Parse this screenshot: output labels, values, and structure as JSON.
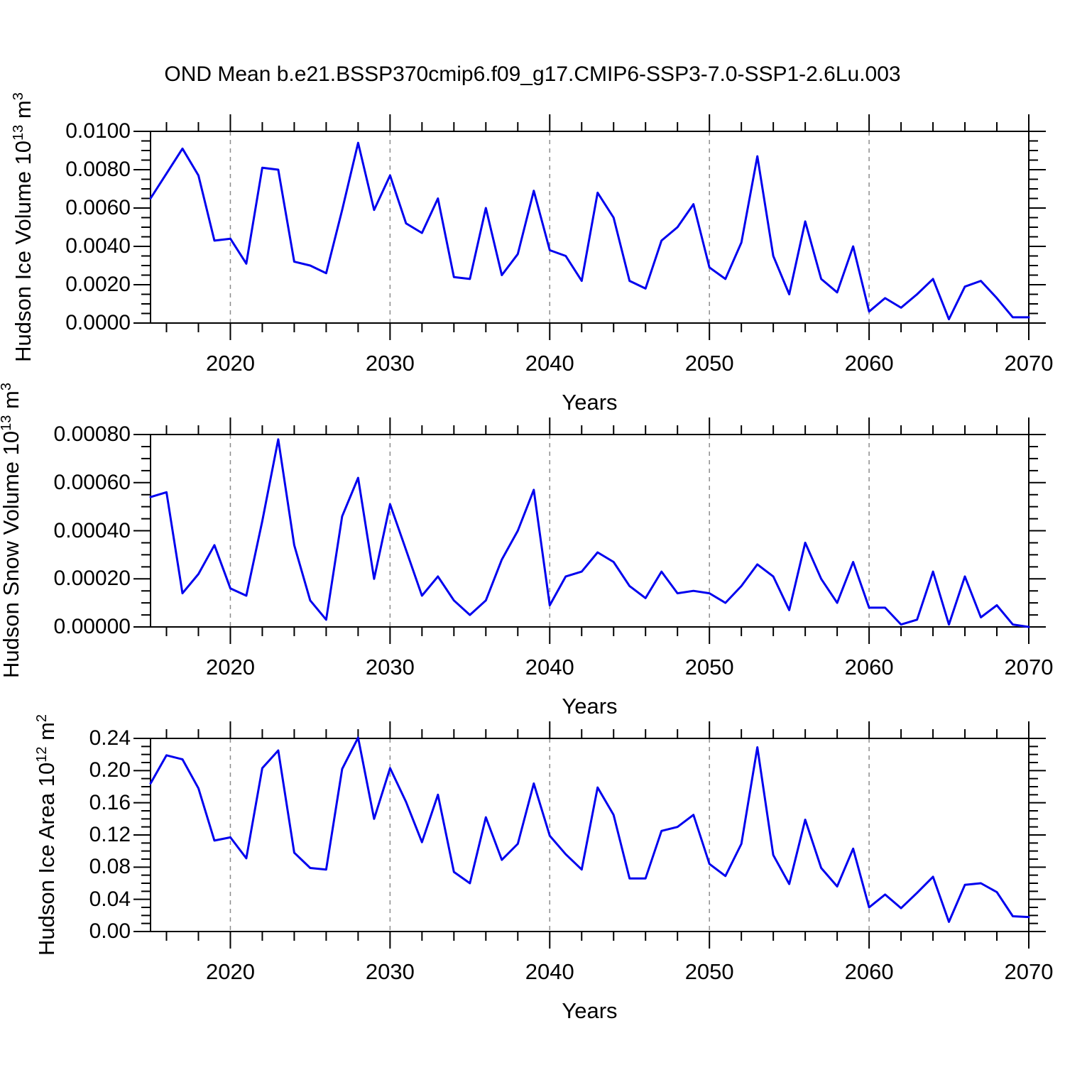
{
  "title": "OND Mean b.e21.BSSP370cmip6.f09_g17.CMIP6-SSP3-7.0-SSP1-2.6Lu.003",
  "colors": {
    "line": "#0000ee",
    "axis": "#000000",
    "grid": "#8c8c8c",
    "background": "#ffffff"
  },
  "chart_data": [
    {
      "type": "line",
      "name": "ice-volume",
      "ylabel_text": "Hudson Ice Volume 10¹³ m³",
      "ylabel": {
        "pre": "Hudson Ice Volume 10",
        "exp": "13",
        "unit": " m",
        "unit_exp": "3"
      },
      "xlabel": "Years",
      "xlim": [
        2015,
        2070
      ],
      "ylim": [
        0,
        0.01
      ],
      "xticks": [
        2020,
        2030,
        2040,
        2050,
        2060,
        2070
      ],
      "xtick_labels": [
        "2020",
        "2030",
        "2040",
        "2050",
        "2060",
        "2070"
      ],
      "xminor_step": 2,
      "grid_years": [
        2020,
        2030,
        2040,
        2050,
        2060
      ],
      "ytick_step": 0.002,
      "yminor_step": 0.0005,
      "ytick_labels": [
        "0.0000",
        "0.0020",
        "0.0040",
        "0.0060",
        "0.0080",
        "0.0100"
      ],
      "x": [
        2015,
        2016,
        2017,
        2018,
        2019,
        2020,
        2021,
        2022,
        2023,
        2024,
        2025,
        2026,
        2027,
        2028,
        2029,
        2030,
        2031,
        2032,
        2033,
        2034,
        2035,
        2036,
        2037,
        2038,
        2039,
        2040,
        2041,
        2042,
        2043,
        2044,
        2045,
        2046,
        2047,
        2048,
        2049,
        2050,
        2051,
        2052,
        2053,
        2054,
        2055,
        2056,
        2057,
        2058,
        2059,
        2060,
        2061,
        2062,
        2063,
        2064,
        2065,
        2066,
        2067,
        2068,
        2069,
        2070
      ],
      "values": [
        0.0065,
        0.0078,
        0.0091,
        0.0077,
        0.0043,
        0.0044,
        0.0031,
        0.0081,
        0.008,
        0.0032,
        0.003,
        0.0026,
        0.0059,
        0.0094,
        0.0059,
        0.0077,
        0.0052,
        0.0047,
        0.0065,
        0.0024,
        0.0023,
        0.006,
        0.0025,
        0.0036,
        0.0069,
        0.0038,
        0.0035,
        0.0022,
        0.0068,
        0.0055,
        0.0022,
        0.0018,
        0.0043,
        0.005,
        0.0062,
        0.0029,
        0.0023,
        0.0042,
        0.0087,
        0.0035,
        0.0015,
        0.0053,
        0.0023,
        0.0016,
        0.004,
        0.0006,
        0.0013,
        0.0008,
        0.0015,
        0.0023,
        0.0002,
        0.0019,
        0.0022,
        0.0013,
        0.0003,
        0.0003
      ]
    },
    {
      "type": "line",
      "name": "snow-volume",
      "ylabel_text": "Hudson Snow Volume 10¹³ m³",
      "ylabel": {
        "pre": "Hudson Snow Volume 10",
        "exp": "13",
        "unit": " m",
        "unit_exp": "3"
      },
      "xlabel": "Years",
      "xlim": [
        2015,
        2070
      ],
      "ylim": [
        0,
        0.0008
      ],
      "xticks": [
        2020,
        2030,
        2040,
        2050,
        2060,
        2070
      ],
      "xtick_labels": [
        "2020",
        "2030",
        "2040",
        "2050",
        "2060",
        "2070"
      ],
      "xminor_step": 2,
      "grid_years": [
        2020,
        2030,
        2040,
        2050,
        2060
      ],
      "ytick_step": 0.0002,
      "yminor_step": 5e-05,
      "ytick_labels": [
        "0.00000",
        "0.00020",
        "0.00040",
        "0.00060",
        "0.00080"
      ],
      "x": [
        2015,
        2016,
        2017,
        2018,
        2019,
        2020,
        2021,
        2022,
        2023,
        2024,
        2025,
        2026,
        2027,
        2028,
        2029,
        2030,
        2031,
        2032,
        2033,
        2034,
        2035,
        2036,
        2037,
        2038,
        2039,
        2040,
        2041,
        2042,
        2043,
        2044,
        2045,
        2046,
        2047,
        2048,
        2049,
        2050,
        2051,
        2052,
        2053,
        2054,
        2055,
        2056,
        2057,
        2058,
        2059,
        2060,
        2061,
        2062,
        2063,
        2064,
        2065,
        2066,
        2067,
        2068,
        2069,
        2070
      ],
      "values": [
        0.00054,
        0.00056,
        0.00014,
        0.00022,
        0.00034,
        0.00016,
        0.00013,
        0.00044,
        0.00078,
        0.00034,
        0.00011,
        3e-05,
        0.00046,
        0.00062,
        0.0002,
        0.00051,
        0.00032,
        0.00013,
        0.00021,
        0.00011,
        5e-05,
        0.00011,
        0.00028,
        0.0004,
        0.00057,
        9e-05,
        0.00021,
        0.00023,
        0.00031,
        0.00027,
        0.00017,
        0.00012,
        0.00023,
        0.00014,
        0.00015,
        0.00014,
        0.0001,
        0.00017,
        0.00026,
        0.00021,
        7e-05,
        0.00035,
        0.0002,
        0.0001,
        0.00027,
        8e-05,
        8e-05,
        1e-05,
        3e-05,
        0.00023,
        1e-05,
        0.00021,
        4e-05,
        9e-05,
        1e-05,
        0.0
      ]
    },
    {
      "type": "line",
      "name": "ice-area",
      "ylabel_text": "Hudson Ice Area 10¹² m²",
      "ylabel": {
        "pre": "Hudson Ice Area 10",
        "exp": "12",
        "unit": " m",
        "unit_exp": "2"
      },
      "xlabel": "Years",
      "xlim": [
        2015,
        2070
      ],
      "ylim": [
        0,
        0.24
      ],
      "xticks": [
        2020,
        2030,
        2040,
        2050,
        2060,
        2070
      ],
      "xtick_labels": [
        "2020",
        "2030",
        "2040",
        "2050",
        "2060",
        "2070"
      ],
      "xminor_step": 2,
      "grid_years": [
        2020,
        2030,
        2040,
        2050,
        2060
      ],
      "ytick_step": 0.04,
      "yminor_step": 0.01,
      "ytick_labels": [
        "0.00",
        "0.04",
        "0.08",
        "0.12",
        "0.16",
        "0.20",
        "0.24"
      ],
      "x": [
        2015,
        2016,
        2017,
        2018,
        2019,
        2020,
        2021,
        2022,
        2023,
        2024,
        2025,
        2026,
        2027,
        2028,
        2029,
        2030,
        2031,
        2032,
        2033,
        2034,
        2035,
        2036,
        2037,
        2038,
        2039,
        2040,
        2041,
        2042,
        2043,
        2044,
        2045,
        2046,
        2047,
        2048,
        2049,
        2050,
        2051,
        2052,
        2053,
        2054,
        2055,
        2056,
        2057,
        2058,
        2059,
        2060,
        2061,
        2062,
        2063,
        2064,
        2065,
        2066,
        2067,
        2068,
        2069,
        2070
      ],
      "values": [
        0.184,
        0.219,
        0.214,
        0.178,
        0.113,
        0.117,
        0.091,
        0.203,
        0.225,
        0.098,
        0.079,
        0.077,
        0.202,
        0.241,
        0.14,
        0.203,
        0.161,
        0.111,
        0.17,
        0.074,
        0.06,
        0.142,
        0.089,
        0.109,
        0.184,
        0.119,
        0.096,
        0.077,
        0.179,
        0.145,
        0.066,
        0.066,
        0.125,
        0.13,
        0.145,
        0.084,
        0.069,
        0.109,
        0.229,
        0.095,
        0.059,
        0.139,
        0.079,
        0.056,
        0.103,
        0.03,
        0.046,
        0.029,
        0.048,
        0.068,
        0.012,
        0.058,
        0.06,
        0.049,
        0.019,
        0.018
      ]
    }
  ]
}
